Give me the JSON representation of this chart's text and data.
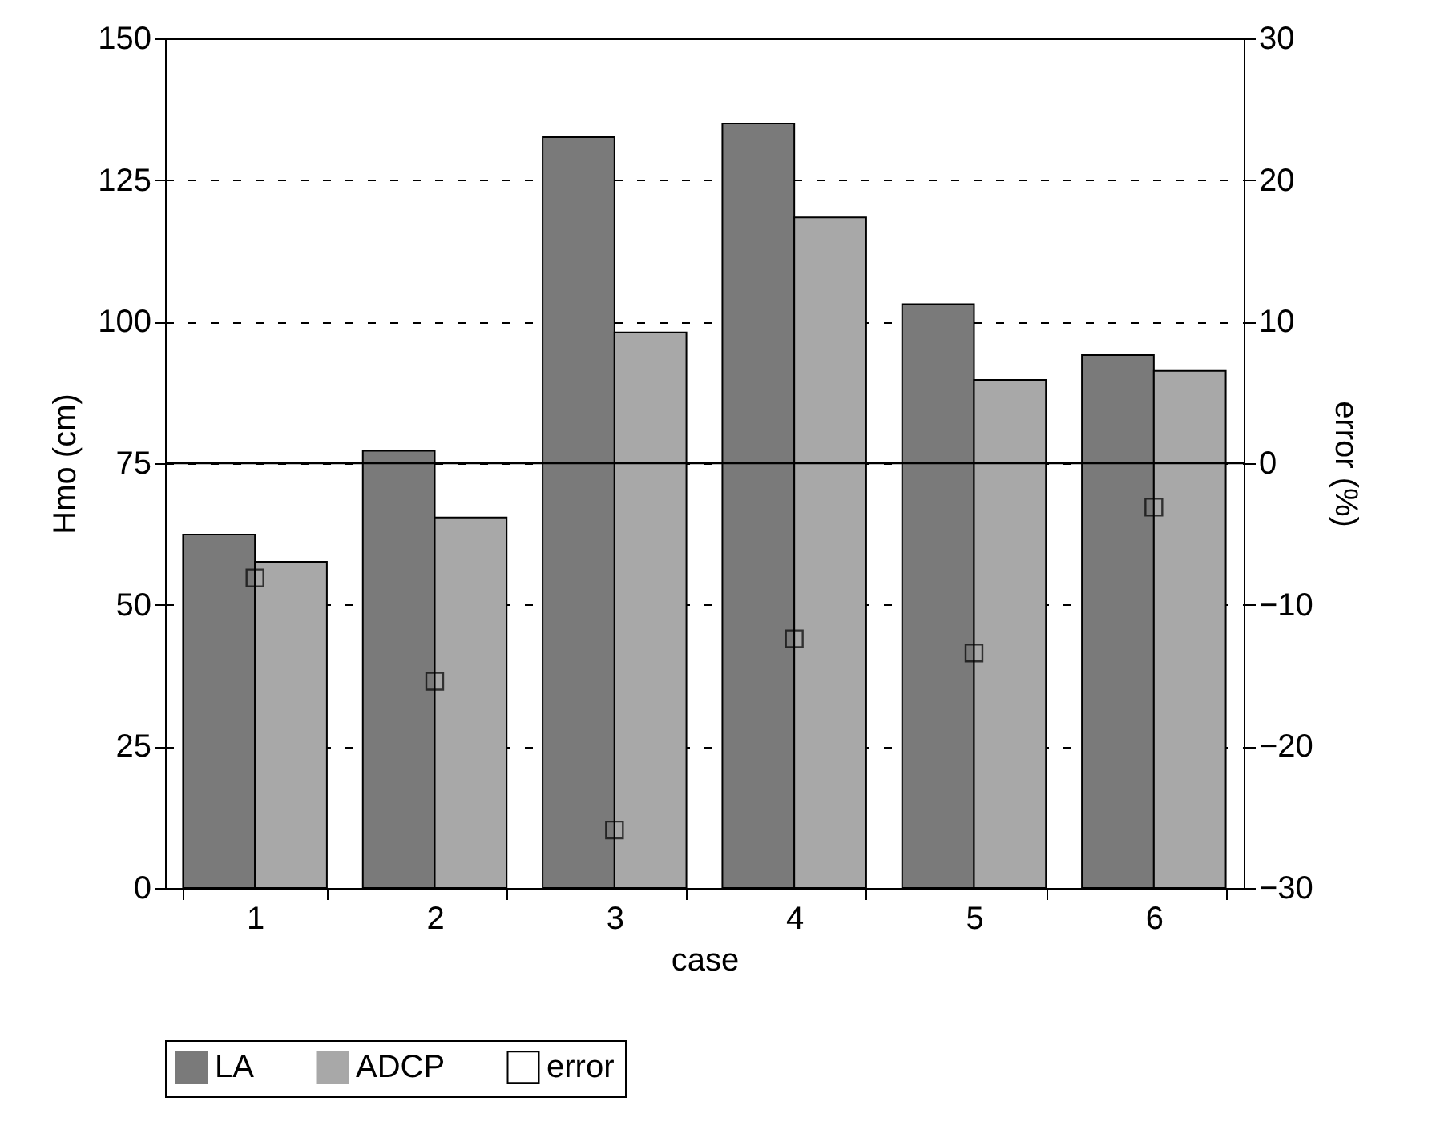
{
  "chart_data": {
    "type": "bar",
    "xlabel": "case",
    "ylabel": "Hmo (cm)",
    "y2label": "error (%)",
    "categories": [
      "1",
      "2",
      "3",
      "4",
      "5",
      "6"
    ],
    "series": [
      {
        "name": "LA",
        "color": "#7a7a7a",
        "values": [
          62.4,
          77.2,
          132.6,
          135.0,
          103.1,
          94.1
        ]
      },
      {
        "name": "ADCP",
        "color": "#a8a8a8",
        "values": [
          57.6,
          65.4,
          98.1,
          118.4,
          89.7,
          91.3
        ]
      },
      {
        "name": "error",
        "type": "scatter",
        "axis": "y2",
        "marker": "square",
        "color": "#000000",
        "values": [
          -8.1,
          -15.4,
          -25.9,
          -12.4,
          -13.4,
          -3.1
        ]
      }
    ],
    "ylim": [
      0,
      150
    ],
    "yticks": [
      0,
      25,
      50,
      75,
      100,
      125,
      150
    ],
    "y2lim": [
      -30,
      30
    ],
    "y2ticks": [
      -30,
      -20,
      -10,
      0,
      10,
      20,
      30
    ],
    "ref_lines": [
      {
        "axis": "y2",
        "value": 0,
        "color": "#000000",
        "line_style": "solid"
      }
    ],
    "grid": "y",
    "legend": "bottom"
  }
}
